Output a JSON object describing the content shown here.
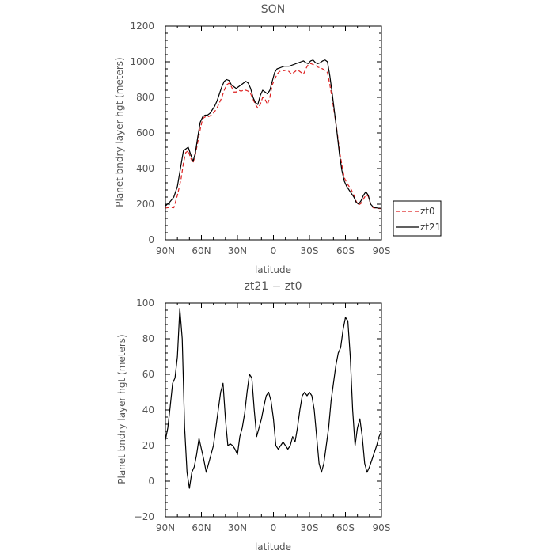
{
  "chart_data": [
    {
      "type": "line",
      "title": "SON",
      "xlabel": "latitude",
      "ylabel": "Planet bndry layer hgt (meters)",
      "xlim": [
        -90,
        90
      ],
      "ylim": [
        0,
        1200
      ],
      "x_ticks": [
        -90,
        -60,
        -30,
        0,
        30,
        60,
        90
      ],
      "x_tick_labels": [
        "90N",
        "60N",
        "30N",
        "0",
        "30S",
        "60S",
        "90S"
      ],
      "y_ticks": [
        0,
        200,
        400,
        600,
        800,
        1000,
        1200
      ],
      "y_tick_labels": [
        "0",
        "200",
        "400",
        "600",
        "800",
        "1000",
        "1200"
      ],
      "legend": {
        "placement": "right-outside",
        "entries": [
          "zt0",
          "zt21"
        ]
      },
      "series": [
        {
          "name": "zt0",
          "color": "#dd2222",
          "dash": "dashed",
          "x": [
            -90,
            -86,
            -83,
            -80,
            -77,
            -75,
            -73,
            -71,
            -69,
            -67,
            -65,
            -63,
            -61,
            -59,
            -57,
            -55,
            -53,
            -51,
            -49,
            -47,
            -45,
            -43,
            -41,
            -39,
            -37,
            -35,
            -33,
            -31,
            -29,
            -27,
            -25,
            -23,
            -21,
            -19,
            -17,
            -15,
            -13,
            -11,
            -9,
            -7,
            -5,
            -3,
            -1,
            1,
            3,
            5,
            7,
            9,
            11,
            13,
            15,
            17,
            19,
            21,
            23,
            25,
            27,
            29,
            31,
            33,
            35,
            37,
            39,
            41,
            43,
            45,
            47,
            49,
            51,
            53,
            55,
            57,
            59,
            61,
            63,
            65,
            67,
            69,
            71,
            73,
            75,
            77,
            79,
            81,
            83,
            85,
            87,
            90
          ],
          "y": [
            178,
            182,
            180,
            250,
            340,
            430,
            490,
            500,
            460,
            430,
            480,
            550,
            620,
            680,
            690,
            690,
            695,
            705,
            720,
            740,
            770,
            800,
            840,
            870,
            880,
            860,
            830,
            830,
            840,
            835,
            840,
            840,
            835,
            820,
            790,
            760,
            740,
            760,
            800,
            790,
            760,
            800,
            870,
            900,
            930,
            945,
            950,
            950,
            955,
            945,
            930,
            940,
            950,
            950,
            940,
            930,
            960,
            985,
            990,
            985,
            980,
            970,
            965,
            960,
            950,
            940,
            870,
            790,
            700,
            610,
            500,
            420,
            350,
            320,
            300,
            280,
            250,
            215,
            195,
            205,
            230,
            250,
            245,
            200,
            180,
            178,
            176,
            175
          ]
        },
        {
          "name": "zt21",
          "color": "#000000",
          "dash": "solid",
          "x": [
            -90,
            -86,
            -83,
            -80,
            -77,
            -75,
            -73,
            -71,
            -69,
            -67,
            -65,
            -63,
            -61,
            -59,
            -57,
            -55,
            -53,
            -51,
            -49,
            -47,
            -45,
            -43,
            -41,
            -39,
            -37,
            -35,
            -33,
            -31,
            -29,
            -27,
            -25,
            -23,
            -21,
            -19,
            -17,
            -15,
            -13,
            -11,
            -9,
            -7,
            -5,
            -3,
            -1,
            1,
            3,
            5,
            7,
            9,
            11,
            13,
            15,
            17,
            19,
            21,
            23,
            25,
            27,
            29,
            31,
            33,
            35,
            37,
            39,
            41,
            43,
            45,
            47,
            49,
            51,
            53,
            55,
            57,
            59,
            61,
            63,
            65,
            67,
            69,
            71,
            73,
            75,
            77,
            79,
            81,
            83,
            85,
            87,
            90
          ],
          "y": [
            190,
            215,
            240,
            300,
            420,
            500,
            510,
            520,
            480,
            440,
            490,
            580,
            660,
            690,
            700,
            700,
            710,
            730,
            750,
            780,
            820,
            860,
            890,
            900,
            895,
            870,
            860,
            850,
            860,
            870,
            880,
            890,
            880,
            850,
            800,
            770,
            760,
            810,
            840,
            830,
            820,
            840,
            890,
            940,
            960,
            965,
            970,
            975,
            975,
            975,
            980,
            985,
            990,
            995,
            1000,
            1005,
            995,
            990,
            1005,
            1010,
            995,
            990,
            995,
            1005,
            1010,
            1000,
            920,
            820,
            710,
            600,
            480,
            390,
            330,
            300,
            280,
            260,
            240,
            210,
            200,
            220,
            250,
            270,
            250,
            200,
            185,
            180,
            178,
            177
          ]
        }
      ]
    },
    {
      "type": "line",
      "title": "zt21 − zt0",
      "xlabel": "latitude",
      "ylabel": "Planet bndry layer hgt (meters)",
      "xlim": [
        -90,
        90
      ],
      "ylim": [
        -20,
        100
      ],
      "x_ticks": [
        -90,
        -60,
        -30,
        0,
        30,
        60,
        90
      ],
      "x_tick_labels": [
        "90N",
        "60N",
        "30N",
        "0",
        "30S",
        "60S",
        "90S"
      ],
      "y_ticks": [
        -20,
        0,
        20,
        40,
        60,
        80,
        100
      ],
      "y_tick_labels": [
        "−20",
        "0",
        "20",
        "40",
        "60",
        "80",
        "100"
      ],
      "series": [
        {
          "color": "#000000",
          "dash": "solid",
          "x": [
            -90,
            -88,
            -86,
            -84,
            -82,
            -80,
            -78,
            -76,
            -74,
            -72,
            -70,
            -68,
            -66,
            -64,
            -62,
            -60,
            -58,
            -56,
            -54,
            -52,
            -50,
            -48,
            -46,
            -44,
            -42,
            -40,
            -38,
            -36,
            -34,
            -32,
            -30,
            -28,
            -26,
            -24,
            -22,
            -20,
            -18,
            -16,
            -14,
            -12,
            -10,
            -8,
            -6,
            -4,
            -2,
            0,
            2,
            4,
            6,
            8,
            10,
            12,
            14,
            16,
            18,
            20,
            22,
            24,
            26,
            28,
            30,
            32,
            34,
            36,
            38,
            40,
            42,
            44,
            46,
            48,
            50,
            52,
            54,
            56,
            58,
            60,
            62,
            64,
            66,
            68,
            70,
            72,
            74,
            76,
            78,
            80,
            82,
            84,
            86,
            88,
            90
          ],
          "y": [
            23,
            30,
            42,
            55,
            58,
            70,
            97,
            80,
            30,
            5,
            -4,
            5,
            8,
            15,
            24,
            18,
            12,
            5,
            10,
            15,
            20,
            30,
            40,
            50,
            55,
            35,
            20,
            21,
            20,
            18,
            15,
            25,
            30,
            38,
            50,
            60,
            58,
            40,
            25,
            30,
            35,
            42,
            48,
            50,
            45,
            35,
            20,
            18,
            20,
            22,
            20,
            18,
            20,
            25,
            22,
            30,
            40,
            48,
            50,
            48,
            50,
            48,
            40,
            25,
            10,
            5,
            10,
            20,
            30,
            45,
            55,
            65,
            72,
            75,
            85,
            92,
            90,
            70,
            40,
            20,
            30,
            35,
            25,
            10,
            5,
            8,
            12,
            16,
            20,
            25,
            28
          ]
        }
      ]
    }
  ]
}
